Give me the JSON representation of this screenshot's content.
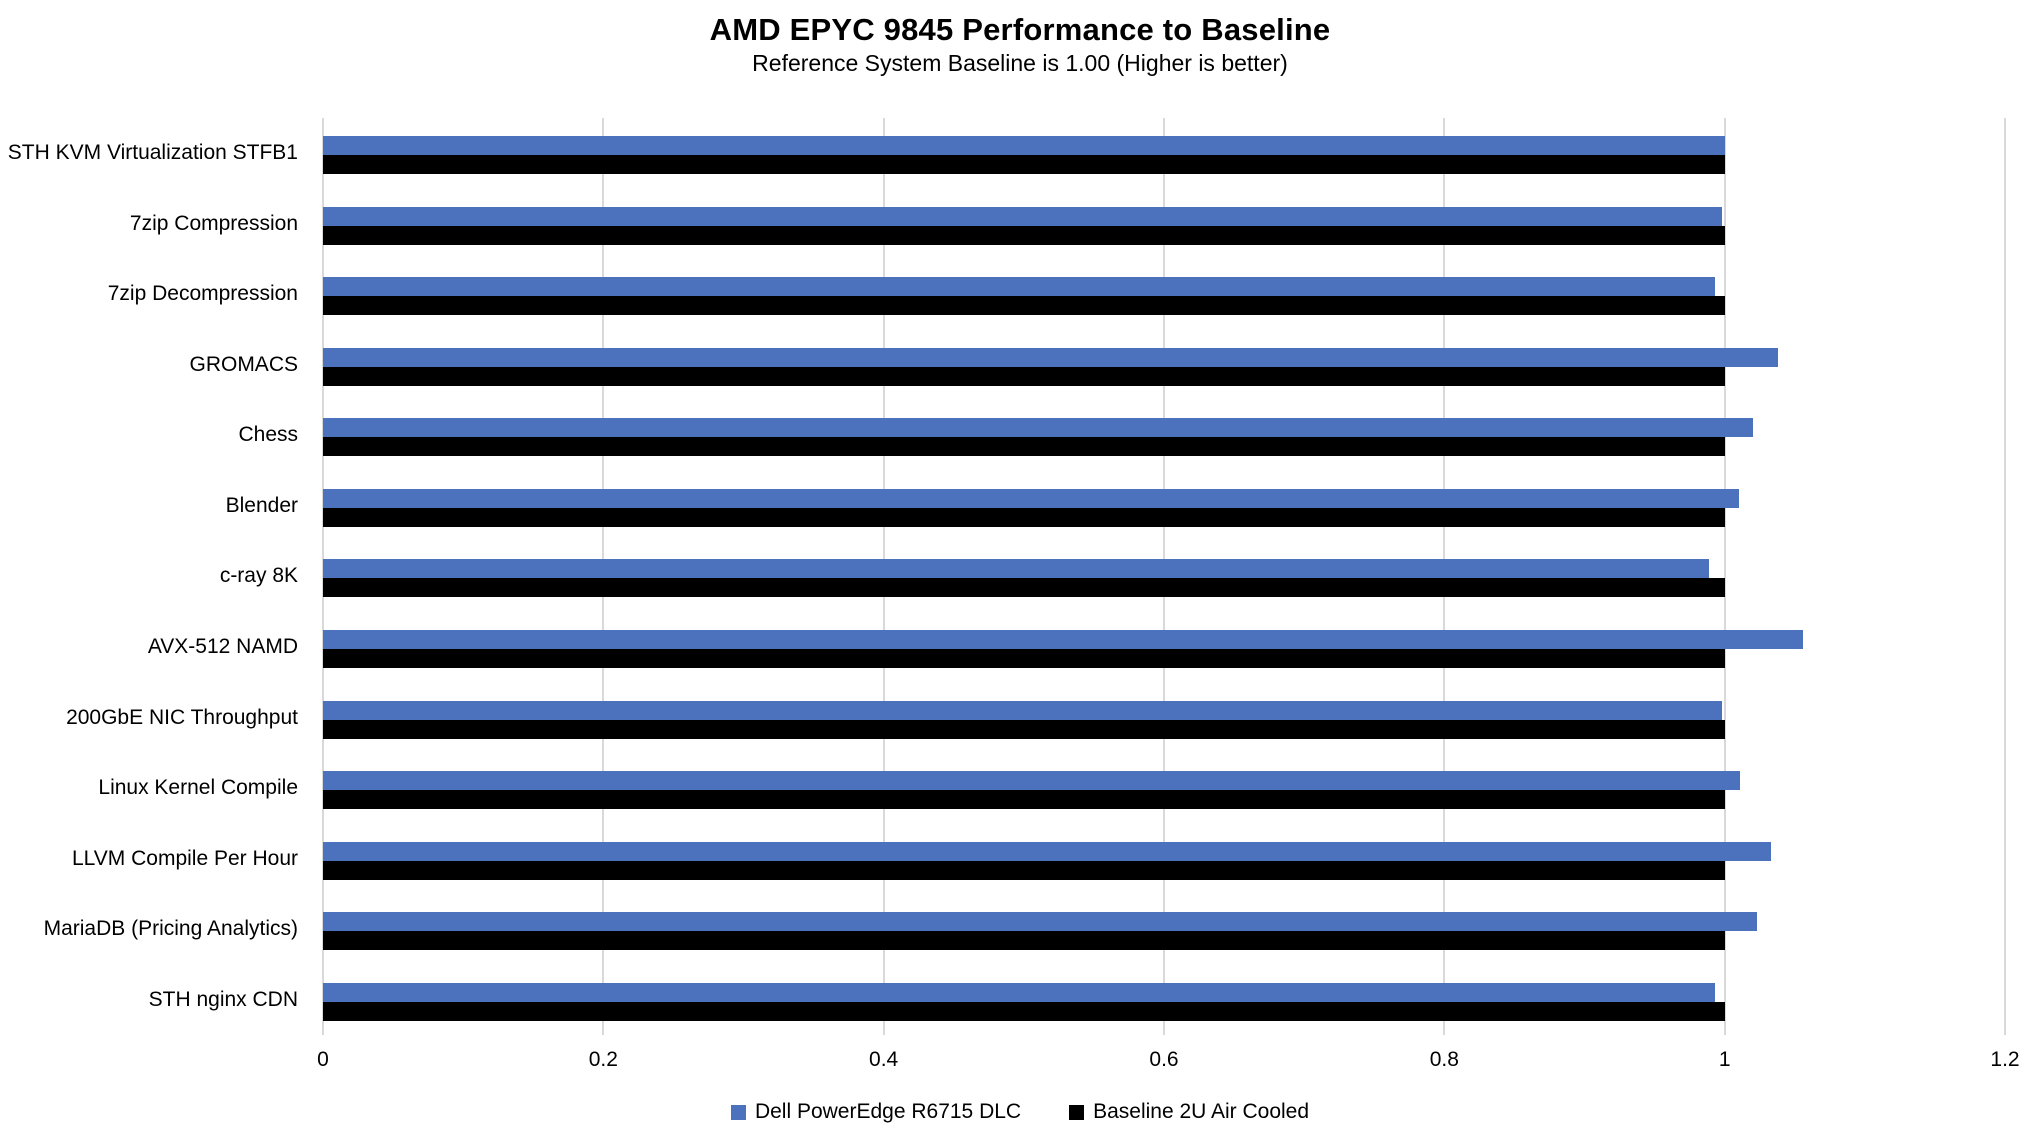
{
  "chart_data": {
    "type": "bar",
    "orientation": "horizontal",
    "title": "AMD EPYC 9845 Performance to Baseline",
    "subtitle": "Reference System Baseline is 1.00 (Higher is better)",
    "categories": [
      "STH KVM Virtualization STFB1",
      "7zip Compression",
      "7zip Decompression",
      "GROMACS",
      "Chess",
      "Blender",
      "c-ray 8K",
      "AVX-512 NAMD",
      "200GbE NIC Throughput",
      "Linux Kernel Compile",
      "LLVM Compile Per Hour",
      "MariaDB (Pricing Analytics)",
      "STH nginx CDN"
    ],
    "series": [
      {
        "name": "Dell PowerEdge R6715 DLC",
        "color": "#4C72BE",
        "values": [
          1.0,
          0.998,
          0.993,
          1.038,
          1.02,
          1.01,
          0.989,
          1.056,
          0.998,
          1.011,
          1.033,
          1.023,
          0.993
        ]
      },
      {
        "name": "Baseline 2U Air Cooled",
        "color": "#000000",
        "values": [
          1.0,
          1.0,
          1.0,
          1.0,
          1.0,
          1.0,
          1.0,
          1.0,
          1.0,
          1.0,
          1.0,
          1.0,
          1.0
        ]
      }
    ],
    "xlim": [
      0,
      1.2
    ],
    "xticks": [
      0,
      0.2,
      0.4,
      0.6,
      0.8,
      1,
      1.2
    ],
    "xtick_labels": [
      "0",
      "0.2",
      "0.4",
      "0.6",
      "0.8",
      "1",
      "1.2"
    ],
    "gridlines": "vertical",
    "gridline_color": "#D9D9D9",
    "legend_position": "bottom-center",
    "background_color": "#FFFFFF"
  }
}
